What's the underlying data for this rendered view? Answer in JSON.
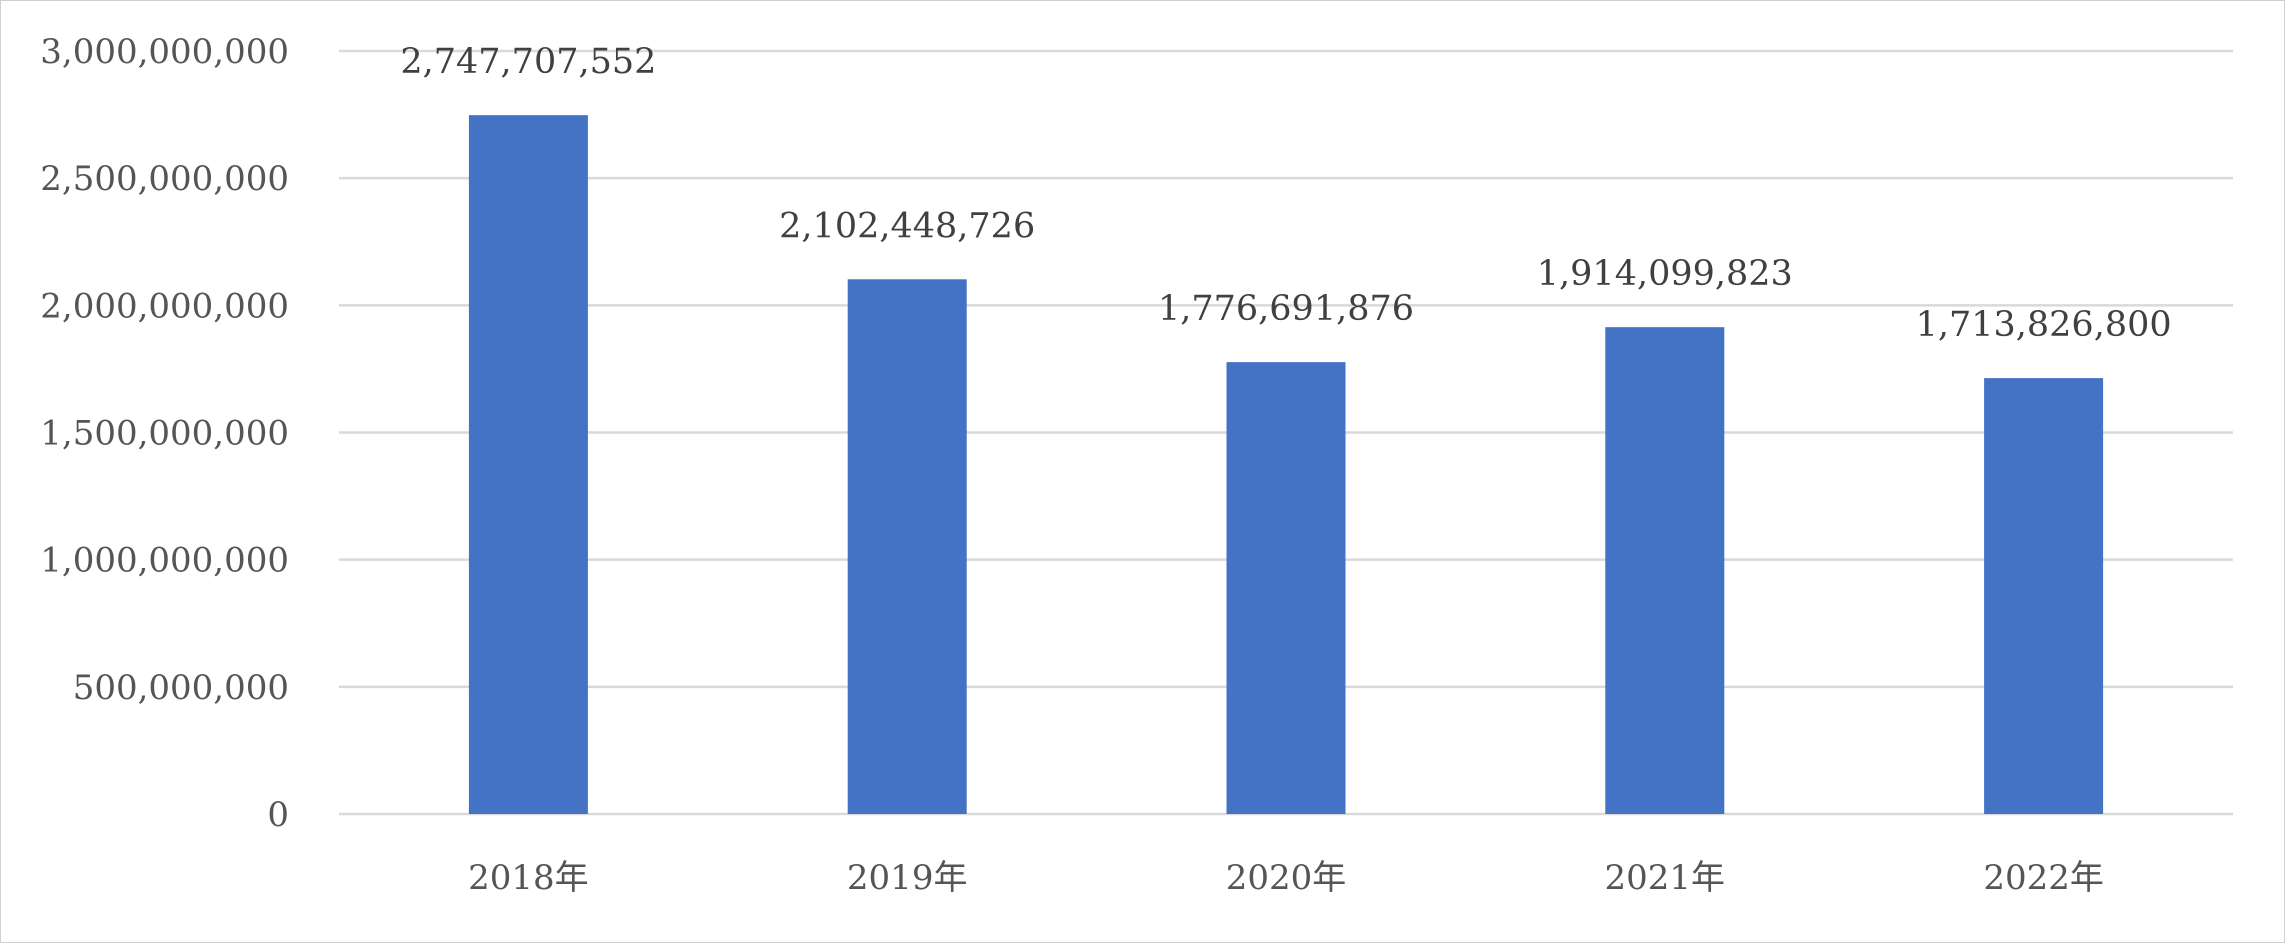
{
  "chart_data": {
    "type": "bar",
    "title": "",
    "xlabel": "",
    "ylabel": "",
    "categories": [
      "2018年",
      "2019年",
      "2020年",
      "2021年",
      "2022年"
    ],
    "values": [
      2747707552,
      2102448726,
      1776691876,
      1914099823,
      1713826800
    ],
    "data_labels": [
      "2,747,707,552",
      "2,102,448,726",
      "1,776,691,876",
      "1,914,099,823",
      "1,713,826,800"
    ],
    "ylim": [
      0,
      3000000000
    ],
    "yticks": [
      0,
      500000000,
      1000000000,
      1500000000,
      2000000000,
      2500000000,
      3000000000
    ],
    "ytick_labels": [
      "0",
      "500,000,000",
      "1,000,000,000",
      "1,500,000,000",
      "2,000,000,000",
      "2,500,000,000",
      "3,000,000,000"
    ],
    "grid": true,
    "legend": "none",
    "bar_color": "#4472C4"
  }
}
